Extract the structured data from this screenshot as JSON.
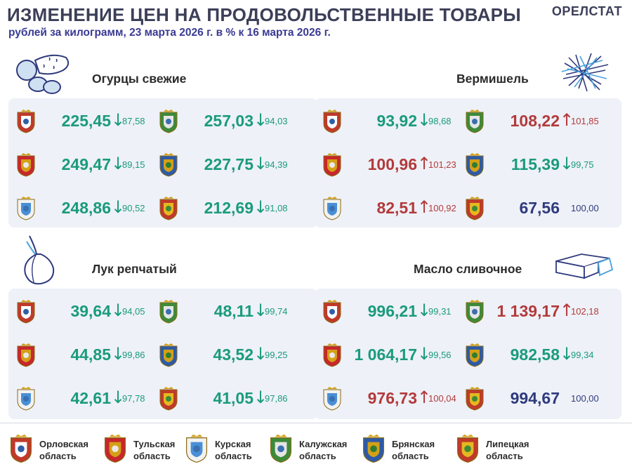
{
  "header": {
    "title": "ИЗМЕНЕНИЕ ЦЕН НА ПРОДОВОЛЬСТВЕННЫЕ ТОВАРЫ",
    "subtitle": "рублей за килограмм, 23 марта 2026 г. в % к 16 марта 2026 г.",
    "brand": "ОРЕЛСТАТ"
  },
  "colors": {
    "down": "#1a9b7c",
    "up": "#b23a3c",
    "flat": "#2f3a7d",
    "panel": "#eef1f7",
    "title": "#3c3f58",
    "subtitle": "#3a3a93"
  },
  "arrows": {
    "down": "↓",
    "up": "↑",
    "flat": ""
  },
  "panels": [
    {
      "title": "Огурцы свежие",
      "icon": "cucumber-icon",
      "cells": [
        {
          "region": "orel",
          "price": "225,45",
          "pct": "87,58",
          "dir": "down"
        },
        {
          "region": "kaluga",
          "price": "257,03",
          "pct": "94,03",
          "dir": "down"
        },
        {
          "region": "tula",
          "price": "249,47",
          "pct": "89,15",
          "dir": "down"
        },
        {
          "region": "bryansk",
          "price": "227,75",
          "pct": "94,39",
          "dir": "down"
        },
        {
          "region": "kursk",
          "price": "248,86",
          "pct": "90,52",
          "dir": "down"
        },
        {
          "region": "lipetsk",
          "price": "212,69",
          "pct": "91,08",
          "dir": "down"
        }
      ]
    },
    {
      "title": "Вермишель",
      "icon": "vermicelli-icon",
      "cells": [
        {
          "region": "orel",
          "price": "93,92",
          "pct": "98,68",
          "dir": "down"
        },
        {
          "region": "kaluga",
          "price": "108,22",
          "pct": "101,85",
          "dir": "up"
        },
        {
          "region": "tula",
          "price": "100,96",
          "pct": "101,23",
          "dir": "up"
        },
        {
          "region": "bryansk",
          "price": "115,39",
          "pct": "99,75",
          "dir": "down"
        },
        {
          "region": "kursk",
          "price": "82,51",
          "pct": "100,92",
          "dir": "up"
        },
        {
          "region": "lipetsk",
          "price": "67,56",
          "pct": "100,00",
          "dir": "flat"
        }
      ]
    },
    {
      "title": "Лук репчатый",
      "icon": "onion-icon",
      "cells": [
        {
          "region": "orel",
          "price": "39,64",
          "pct": "94,05",
          "dir": "down"
        },
        {
          "region": "kaluga",
          "price": "48,11",
          "pct": "99,74",
          "dir": "down"
        },
        {
          "region": "tula",
          "price": "44,85",
          "pct": "99,86",
          "dir": "down"
        },
        {
          "region": "bryansk",
          "price": "43,52",
          "pct": "99,25",
          "dir": "down"
        },
        {
          "region": "kursk",
          "price": "42,61",
          "pct": "97,78",
          "dir": "down"
        },
        {
          "region": "lipetsk",
          "price": "41,05",
          "pct": "97,86",
          "dir": "down"
        }
      ]
    },
    {
      "title": "Масло сливочное",
      "icon": "butter-icon",
      "cells": [
        {
          "region": "orel",
          "price": "996,21",
          "pct": "99,31",
          "dir": "down"
        },
        {
          "region": "kaluga",
          "price": "1 139,17",
          "pct": "102,18",
          "dir": "up"
        },
        {
          "region": "tula",
          "price": "1 064,17",
          "pct": "99,56",
          "dir": "down"
        },
        {
          "region": "bryansk",
          "price": "982,58",
          "pct": "99,34",
          "dir": "down"
        },
        {
          "region": "kursk",
          "price": "976,73",
          "pct": "100,04",
          "dir": "up"
        },
        {
          "region": "lipetsk",
          "price": "994,67",
          "pct": "100,00",
          "dir": "flat"
        }
      ]
    }
  ],
  "legend": [
    {
      "region": "orel",
      "line1": "Орловская",
      "line2": "область"
    },
    {
      "region": "tula",
      "line1": "Тульская",
      "line2": "область"
    },
    {
      "region": "kursk",
      "line1": "Курская",
      "line2": "область"
    },
    {
      "region": "kaluga",
      "line1": "Калужская",
      "line2": "область"
    },
    {
      "region": "bryansk",
      "line1": "Брянская",
      "line2": "область"
    },
    {
      "region": "lipetsk",
      "line1": "Липецкая",
      "line2": "область"
    }
  ]
}
